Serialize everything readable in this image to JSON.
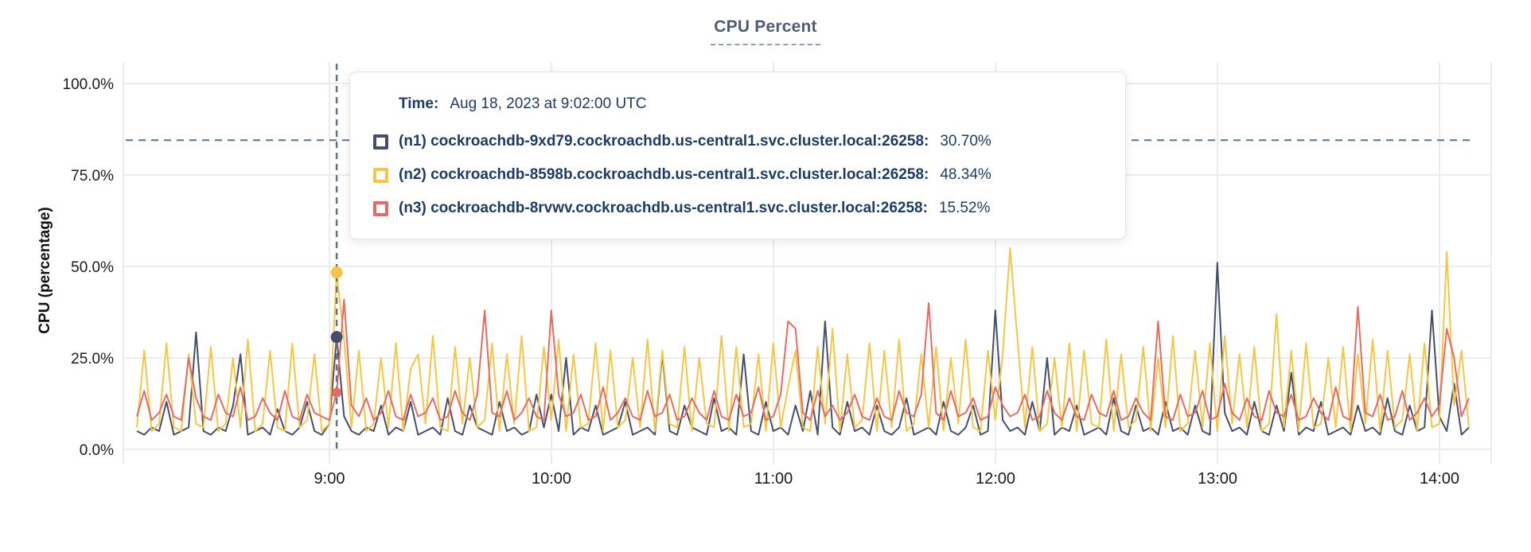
{
  "title": "CPU Percent",
  "tooltip": {
    "time_label": "Time:",
    "time_value": "Aug 18, 2023 at 9:02:00 UTC",
    "rows": [
      {
        "label": "(n1) cockroachdb-9xd79.cockroachdb.us-central1.svc.cluster.local:26258:",
        "value": "30.70%"
      },
      {
        "label": "(n2) cockroachdb-8598b.cockroachdb.us-central1.svc.cluster.local:26258:",
        "value": "48.34%"
      },
      {
        "label": "(n3) cockroachdb-8rvwv.cockroachdb.us-central1.svc.cluster.local:26258:",
        "value": "15.52%"
      }
    ]
  },
  "chart_data": {
    "type": "line",
    "title": "CPU Percent",
    "ylabel": "CPU (percentage)",
    "ylim": [
      0,
      100
    ],
    "grid": true,
    "yticks": [
      {
        "value": 0,
        "label": "0.0%"
      },
      {
        "value": 25,
        "label": "25.0%"
      },
      {
        "value": 50,
        "label": "50.0%"
      },
      {
        "value": 75,
        "label": "75.0%"
      },
      {
        "value": 100,
        "label": "100.0%"
      }
    ],
    "xticks": [
      "9:00",
      "10:00",
      "11:00",
      "12:00",
      "13:00",
      "14:00"
    ],
    "x_range": {
      "start": "8:08",
      "end": "14:08",
      "step_minutes": 2
    },
    "threshold_percent": 84.5,
    "hover": {
      "time": "9:02",
      "index": 27
    },
    "colors": {
      "grid": "#ececec",
      "dashed": "#5d7588",
      "tick_text": "#1a1a1a"
    },
    "series": [
      {
        "id": "n1",
        "name": "cockroachdb-9xd79",
        "color": "#454f6b",
        "values": [
          5,
          4,
          6,
          5,
          13,
          4,
          5,
          6,
          32,
          5,
          4,
          6,
          5,
          12,
          26,
          4,
          5,
          6,
          4,
          11,
          5,
          4,
          6,
          13,
          5,
          4,
          7,
          30.7,
          9,
          5,
          4,
          6,
          5,
          12,
          4,
          6,
          5,
          13,
          4,
          5,
          6,
          4,
          14,
          5,
          4,
          12,
          6,
          5,
          4,
          13,
          5,
          6,
          4,
          5,
          15,
          6,
          15,
          5,
          25,
          4,
          6,
          5,
          12,
          4,
          5,
          6,
          13,
          4,
          5,
          6,
          4,
          26,
          5,
          4,
          12,
          6,
          5,
          4,
          14,
          5,
          6,
          4,
          26,
          5,
          4,
          13,
          5,
          6,
          4,
          12,
          5,
          16,
          4,
          35,
          6,
          4,
          13,
          5,
          6,
          4,
          12,
          5,
          4,
          6,
          14,
          4,
          5,
          6,
          4,
          13,
          5,
          4,
          6,
          12,
          4,
          5,
          38,
          8,
          5,
          6,
          4,
          13,
          5,
          25,
          4,
          6,
          5,
          12,
          4,
          5,
          6,
          4,
          14,
          5,
          4,
          12,
          5,
          6,
          4,
          13,
          5,
          6,
          4,
          12,
          5,
          4,
          51,
          10,
          5,
          6,
          4,
          13,
          5,
          4,
          12,
          5,
          21,
          4,
          6,
          5,
          13,
          4,
          5,
          6,
          4,
          12,
          5,
          6,
          4,
          14,
          5,
          4,
          12,
          5,
          6,
          38,
          9,
          5,
          18,
          4,
          6
        ]
      },
      {
        "id": "n2",
        "name": "cockroachdb-8598b",
        "color": "#f5c644",
        "values": [
          6,
          27,
          5,
          7,
          29,
          6,
          5,
          26,
          7,
          6,
          28,
          5,
          7,
          25,
          6,
          30,
          5,
          7,
          27,
          6,
          5,
          29,
          6,
          8,
          26,
          5,
          7,
          48.34,
          30,
          6,
          27,
          5,
          7,
          25,
          6,
          29,
          5,
          22,
          26,
          7,
          31,
          6,
          5,
          28,
          7,
          25,
          6,
          8,
          29,
          5,
          26,
          7,
          31,
          5,
          6,
          28,
          8,
          30,
          5,
          26,
          6,
          7,
          29,
          5,
          27,
          6,
          8,
          25,
          6,
          30,
          5,
          27,
          7,
          6,
          28,
          5,
          25,
          7,
          6,
          31,
          5,
          28,
          6,
          7,
          26,
          5,
          29,
          6,
          17,
          27,
          6,
          5,
          28,
          7,
          33,
          5,
          26,
          6,
          8,
          29,
          5,
          27,
          6,
          30,
          5,
          7,
          26,
          6,
          28,
          5,
          25,
          7,
          30,
          6,
          5,
          27,
          8,
          26,
          55,
          30,
          6,
          28,
          5,
          7,
          25,
          6,
          29,
          5,
          27,
          7,
          6,
          30,
          5,
          26,
          6,
          8,
          28,
          5,
          25,
          6,
          31,
          5,
          7,
          27,
          6,
          29,
          5,
          31,
          7,
          26,
          6,
          28,
          5,
          7,
          37,
          6,
          27,
          5,
          29,
          6,
          7,
          25,
          6,
          28,
          5,
          26,
          7,
          30,
          5,
          27,
          6,
          8,
          26,
          5,
          29,
          6,
          7,
          54,
          12,
          27,
          6
        ]
      },
      {
        "id": "n3",
        "name": "cockroachdb-8rvwv",
        "color": "#e56b62",
        "values": [
          9,
          16,
          8,
          10,
          15,
          9,
          8,
          25,
          14,
          9,
          8,
          15,
          10,
          9,
          17,
          8,
          9,
          14,
          10,
          8,
          16,
          9,
          8,
          15,
          10,
          9,
          8,
          15.52,
          41,
          12,
          9,
          14,
          8,
          10,
          16,
          9,
          8,
          15,
          9,
          10,
          14,
          8,
          9,
          16,
          10,
          8,
          15,
          38,
          10,
          9,
          16,
          8,
          10,
          14,
          9,
          8,
          38,
          15,
          9,
          10,
          15,
          8,
          9,
          17,
          8,
          10,
          14,
          9,
          8,
          16,
          9,
          10,
          15,
          8,
          9,
          14,
          10,
          8,
          16,
          9,
          8,
          15,
          9,
          10,
          17,
          8,
          9,
          15,
          35,
          33,
          10,
          8,
          16,
          9,
          12,
          8,
          10,
          15,
          9,
          8,
          14,
          9,
          8,
          16,
          10,
          9,
          15,
          40,
          10,
          8,
          16,
          9,
          10,
          14,
          8,
          9,
          17,
          12,
          9,
          10,
          15,
          8,
          9,
          16,
          10,
          8,
          14,
          9,
          8,
          15,
          10,
          9,
          16,
          8,
          9,
          14,
          10,
          8,
          35,
          9,
          8,
          15,
          9,
          10,
          16,
          8,
          9,
          18,
          10,
          8,
          14,
          9,
          8,
          16,
          10,
          9,
          15,
          8,
          9,
          14,
          10,
          8,
          17,
          9,
          8,
          39,
          10,
          9,
          15,
          8,
          9,
          16,
          8,
          10,
          14,
          9,
          12,
          33,
          25,
          9,
          14
        ]
      }
    ]
  }
}
